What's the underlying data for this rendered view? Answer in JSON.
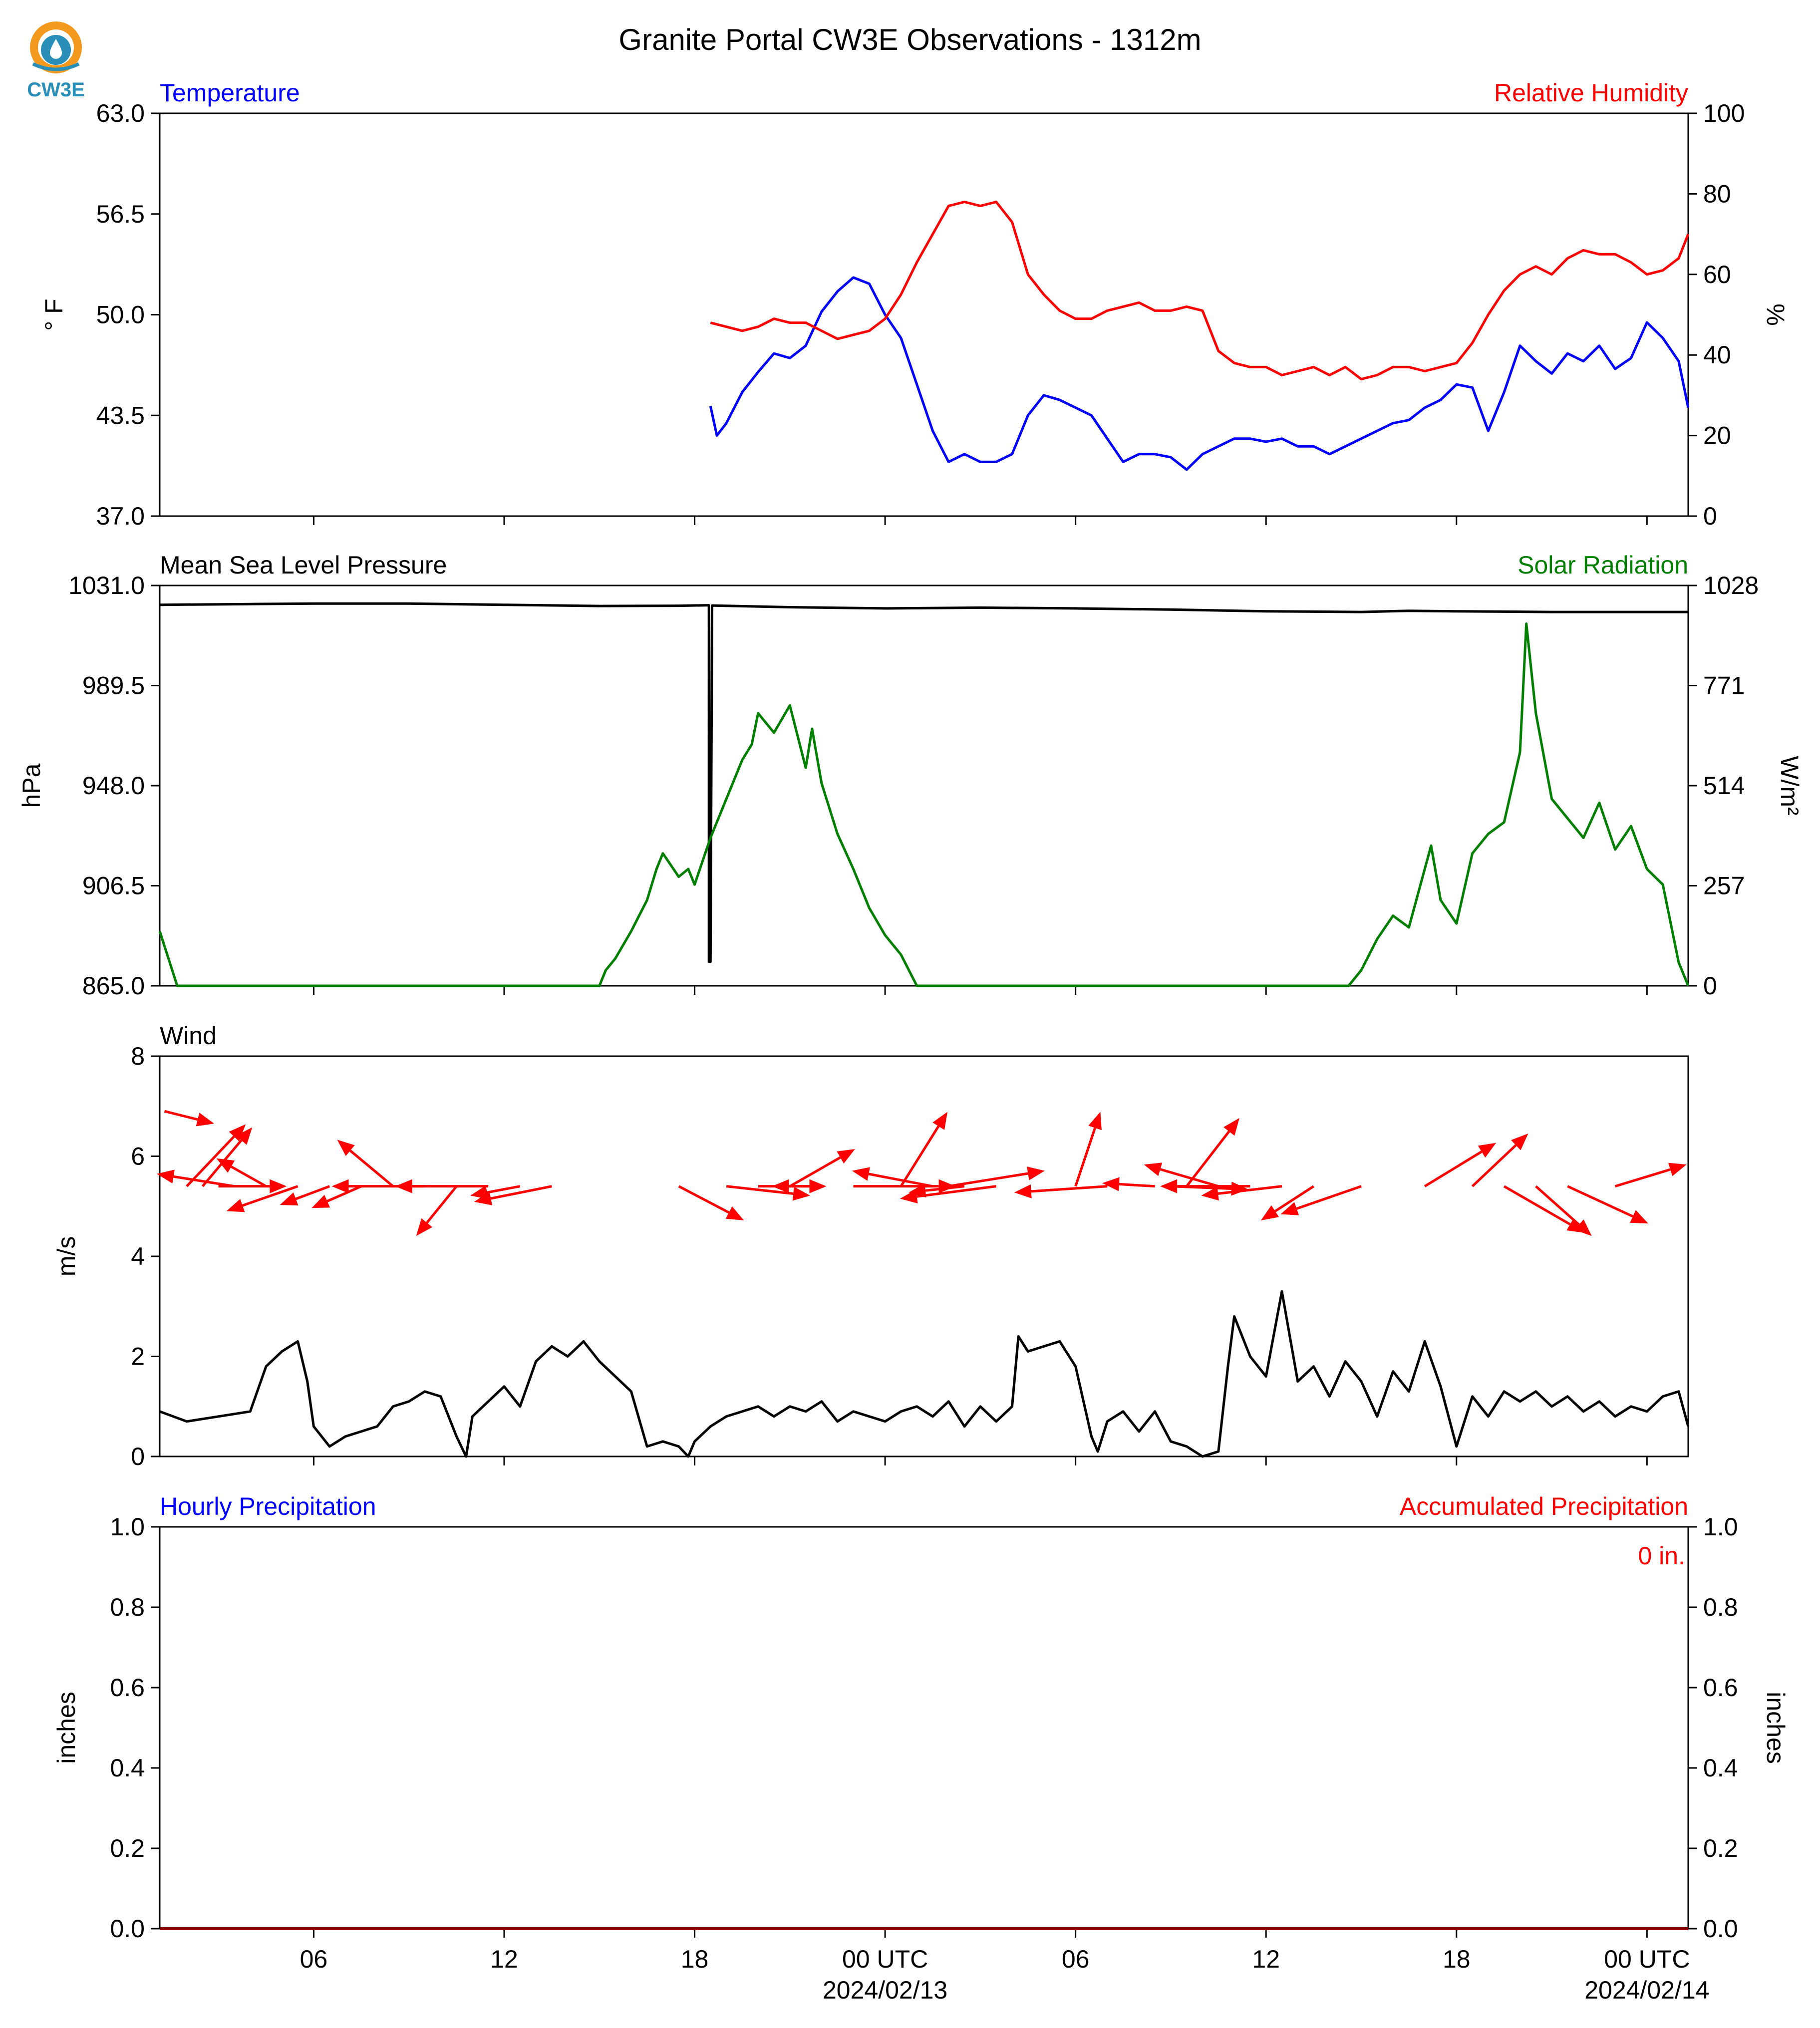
{
  "title": "Granite Portal CW3E Observations - 1312m",
  "logo": {
    "text": "CW3E",
    "colors": {
      "sun": "#f39a1e",
      "water": "#2a8fb8",
      "text": "#2a8fb8"
    }
  },
  "colors": {
    "blue": "#0000ff",
    "red": "#ff0000",
    "green": "#007f00",
    "black": "#000000",
    "axis": "#000000"
  },
  "x_axis": {
    "range_hours": [
      -22.85,
      25.3
    ],
    "ticks": [
      {
        "hour": -18,
        "label": "06"
      },
      {
        "hour": -12,
        "label": "12"
      },
      {
        "hour": -6,
        "label": "18"
      },
      {
        "hour": 0,
        "label": "00 UTC",
        "date": "2024/02/13"
      },
      {
        "hour": 6,
        "label": "06"
      },
      {
        "hour": 12,
        "label": "12"
      },
      {
        "hour": 18,
        "label": "18"
      },
      {
        "hour": 24,
        "label": "00 UTC",
        "date": "2024/02/14"
      }
    ]
  },
  "chart_data": [
    {
      "id": "temperature_humidity",
      "type": "line",
      "left_title": "Temperature",
      "right_title": "Relative Humidity",
      "left_ylabel": "° F",
      "right_ylabel": "%",
      "left_ylim": [
        37.0,
        63.0
      ],
      "right_ylim": [
        0,
        100
      ],
      "left_ticks": [
        "37.0",
        "43.5",
        "50.0",
        "56.5",
        "63.0"
      ],
      "right_ticks": [
        "0",
        "20",
        "40",
        "60",
        "80",
        "100"
      ],
      "series": [
        {
          "name": "Temperature",
          "axis": "left",
          "color": "#0000ff",
          "x": [
            -5.5,
            -5.3,
            -5,
            -4.5,
            -4,
            -3.5,
            -3,
            -2.5,
            -2,
            -1.5,
            -1,
            -0.5,
            0,
            0.5,
            1,
            1.5,
            2,
            2.5,
            3,
            3.5,
            4,
            4.5,
            5,
            5.5,
            6,
            6.5,
            7,
            7.5,
            8,
            8.5,
            9,
            9.5,
            10,
            10.5,
            11,
            11.5,
            12,
            12.5,
            13,
            13.5,
            14,
            14.5,
            15,
            15.5,
            16,
            16.5,
            17,
            17.5,
            18,
            18.5,
            19,
            19.5,
            20,
            20.5,
            21,
            21.5,
            22,
            22.5,
            23,
            23.5,
            24,
            24.5,
            25,
            25.3
          ],
          "y": [
            44.1,
            42.2,
            43.0,
            45.0,
            46.3,
            47.5,
            47.2,
            48.0,
            50.2,
            51.5,
            52.4,
            52.0,
            50.0,
            48.5,
            45.5,
            42.5,
            40.5,
            41.0,
            40.5,
            40.5,
            41.0,
            43.5,
            44.8,
            44.5,
            44.0,
            43.5,
            42.0,
            40.5,
            41.0,
            41.0,
            40.8,
            40.0,
            41.0,
            41.5,
            42.0,
            42.0,
            41.8,
            42.0,
            41.5,
            41.5,
            41.0,
            41.5,
            42.0,
            42.5,
            43.0,
            43.2,
            44.0,
            44.5,
            45.5,
            45.3,
            42.5,
            45.0,
            48.0,
            47.0,
            46.2,
            47.5,
            47.0,
            48.0,
            46.5,
            47.2,
            49.5,
            48.5,
            47.0,
            44.0
          ]
        },
        {
          "name": "Relative Humidity",
          "axis": "right",
          "color": "#ff0000",
          "x": [
            -5.5,
            -5,
            -4.5,
            -4,
            -3.5,
            -3,
            -2.5,
            -2,
            -1.5,
            -1,
            -0.5,
            0,
            0.5,
            1,
            1.5,
            2,
            2.5,
            3,
            3.5,
            4,
            4.5,
            5,
            5.5,
            6,
            6.5,
            7,
            7.5,
            8,
            8.5,
            9,
            9.5,
            10,
            10.5,
            11,
            11.5,
            12,
            12.5,
            13,
            13.5,
            14,
            14.5,
            15,
            15.5,
            16,
            16.5,
            17,
            17.5,
            18,
            18.5,
            19,
            19.5,
            20,
            20.5,
            21,
            21.5,
            22,
            22.5,
            23,
            23.5,
            24,
            24.5,
            25,
            25.3
          ],
          "y": [
            48,
            47,
            46,
            47,
            49,
            48,
            48,
            46,
            44,
            45,
            46,
            49,
            55,
            63,
            70,
            77,
            78,
            77,
            78,
            73,
            60,
            55,
            51,
            49,
            49,
            51,
            52,
            53,
            51,
            51,
            52,
            51,
            41,
            38,
            37,
            37,
            35,
            36,
            37,
            35,
            37,
            34,
            35,
            37,
            37,
            36,
            37,
            38,
            43,
            50,
            56,
            60,
            62,
            60,
            64,
            66,
            65,
            65,
            63,
            60,
            61,
            64,
            70
          ]
        }
      ]
    },
    {
      "id": "pressure_solar",
      "type": "line",
      "left_title": "Mean Sea Level Pressure",
      "right_title": "Solar Radiation",
      "left_ylabel": "hPa",
      "right_ylabel": "W/m²",
      "left_ylim": [
        865.0,
        1031.0
      ],
      "right_ylim": [
        0,
        1028
      ],
      "left_ticks": [
        "865.0",
        "906.5",
        "948.0",
        "989.5",
        "1031.0"
      ],
      "right_ticks": [
        "0",
        "257",
        "514",
        "771",
        "1028"
      ],
      "series": [
        {
          "name": "Mean Sea Level Pressure",
          "axis": "left",
          "color": "#000000",
          "x": [
            -22.85,
            -20,
            -18,
            -15,
            -12,
            -9,
            -6.5,
            -5.6,
            -5.55,
            -5.55,
            -5.5,
            -5.45,
            -3,
            0,
            3,
            6,
            9,
            12,
            15,
            16.5,
            18,
            21,
            25.3
          ],
          "y": [
            1023.0,
            1023.3,
            1023.5,
            1023.5,
            1023.0,
            1022.5,
            1022.6,
            1022.8,
            1022.8,
            875.0,
            875.0,
            1022.7,
            1022.0,
            1021.5,
            1021.8,
            1021.5,
            1021.0,
            1020.3,
            1020.0,
            1020.5,
            1020.3,
            1020.0,
            1020.0
          ]
        },
        {
          "name": "Solar Radiation",
          "axis": "right",
          "color": "#007f00",
          "x": [
            -22.85,
            -22.3,
            -18,
            -14,
            -9,
            -8.8,
            -8.5,
            -8,
            -7.5,
            -7.2,
            -7,
            -6.5,
            -6.2,
            -6,
            -5.5,
            -5,
            -4.5,
            -4.2,
            -4,
            -3.5,
            -3,
            -2.5,
            -2.3,
            -2,
            -1.5,
            -1,
            -0.5,
            0,
            0.5,
            1,
            1.5,
            3,
            6,
            9,
            12,
            14,
            14.6,
            15,
            15.5,
            16,
            16.5,
            17,
            17.2,
            17.5,
            18,
            18.5,
            19,
            19.5,
            20,
            20.2,
            20.5,
            21,
            21.5,
            22,
            22.5,
            23,
            23.5,
            24,
            24.5,
            25,
            25.3
          ],
          "y": [
            140,
            0,
            0,
            0,
            0,
            40,
            70,
            140,
            220,
            300,
            340,
            280,
            300,
            260,
            380,
            480,
            580,
            620,
            700,
            650,
            720,
            560,
            660,
            520,
            390,
            300,
            200,
            130,
            80,
            0,
            0,
            0,
            0,
            0,
            0,
            0,
            0,
            40,
            120,
            180,
            150,
            300,
            360,
            220,
            160,
            340,
            390,
            420,
            600,
            930,
            700,
            480,
            430,
            380,
            470,
            350,
            410,
            300,
            260,
            60,
            0
          ]
        }
      ]
    },
    {
      "id": "wind",
      "type": "line",
      "left_title": "Wind",
      "left_ylabel": "m/s",
      "left_ylim": [
        0,
        8
      ],
      "left_ticks": [
        "0",
        "2",
        "4",
        "6",
        "8"
      ],
      "series": [
        {
          "name": "Wind",
          "axis": "left",
          "color": "#000000",
          "x": [
            -22.85,
            -22,
            -21,
            -20,
            -19.5,
            -19,
            -18.5,
            -18.2,
            -18,
            -17.5,
            -17,
            -16,
            -15.5,
            -15,
            -14.5,
            -14,
            -13.5,
            -13.2,
            -13,
            -12.5,
            -12,
            -11.5,
            -11,
            -10.5,
            -10,
            -9.5,
            -9,
            -8.5,
            -8,
            -7.5,
            -7,
            -6.5,
            -6.2,
            -6,
            -5.5,
            -5,
            -4.5,
            -4,
            -3.5,
            -3,
            -2.5,
            -2,
            -1.5,
            -1,
            -0.5,
            0,
            0.5,
            1,
            1.5,
            2,
            2.5,
            3,
            3.5,
            4,
            4.2,
            4.5,
            5,
            5.5,
            6,
            6.5,
            6.7,
            7,
            7.5,
            8,
            8.5,
            9,
            9.5,
            10,
            10.5,
            10.8,
            11,
            11.5,
            12,
            12.5,
            13,
            13.5,
            14,
            14.5,
            15,
            15.5,
            16,
            16.5,
            17,
            17.5,
            18,
            18.5,
            19,
            19.5,
            20,
            20.5,
            21,
            21.5,
            22,
            22.5,
            23,
            23.5,
            24,
            24.5,
            25,
            25.3
          ],
          "y": [
            0.9,
            0.7,
            0.8,
            0.9,
            1.8,
            2.1,
            2.3,
            1.5,
            0.6,
            0.2,
            0.4,
            0.6,
            1.0,
            1.1,
            1.3,
            1.2,
            0.4,
            0,
            0.8,
            1.1,
            1.4,
            1.0,
            1.9,
            2.2,
            2.0,
            2.3,
            1.9,
            1.6,
            1.3,
            0.2,
            0.3,
            0.2,
            0,
            0.3,
            0.6,
            0.8,
            0.9,
            1.0,
            0.8,
            1.0,
            0.9,
            1.1,
            0.7,
            0.9,
            0.8,
            0.7,
            0.9,
            1.0,
            0.8,
            1.1,
            0.6,
            1.0,
            0.7,
            1.0,
            2.4,
            2.1,
            2.2,
            2.3,
            1.8,
            0.4,
            0.1,
            0.7,
            0.9,
            0.5,
            0.9,
            0.3,
            0.2,
            0,
            0.1,
            1.8,
            2.8,
            2.0,
            1.6,
            3.3,
            1.5,
            1.8,
            1.2,
            1.9,
            1.5,
            0.8,
            1.7,
            1.3,
            2.3,
            1.4,
            0.2,
            1.2,
            0.8,
            1.3,
            1.1,
            1.3,
            1.0,
            1.2,
            0.9,
            1.1,
            0.8,
            1.0,
            0.9,
            1.2,
            1.3,
            0.6
          ]
        }
      ],
      "wind_arrows": {
        "color": "#ff0000",
        "items": [
          {
            "hour": -22.7,
            "y": 6.9,
            "dx": 1.6,
            "dy": -0.4
          },
          {
            "hour": -22.0,
            "y": 5.4,
            "dx": 1.9,
            "dy": 2.0
          },
          {
            "hour": -21.5,
            "y": 5.4,
            "dx": 1.6,
            "dy": 1.9
          },
          {
            "hour": -21.0,
            "y": 5.4,
            "dx": 2.2,
            "dy": 0.0
          },
          {
            "hour": -20.5,
            "y": 5.4,
            "dx": -2.5,
            "dy": 0.4
          },
          {
            "hour": -19.5,
            "y": 5.4,
            "dx": -1.6,
            "dy": 0.9
          },
          {
            "hour": -18.5,
            "y": 5.4,
            "dx": -2.3,
            "dy": -0.8
          },
          {
            "hour": -17.5,
            "y": 5.4,
            "dx": -1.6,
            "dy": -0.6
          },
          {
            "hour": -16.5,
            "y": 5.4,
            "dx": -1.6,
            "dy": -0.7
          },
          {
            "hour": -15.5,
            "y": 5.4,
            "dx": -1.8,
            "dy": 1.5
          },
          {
            "hour": -14.5,
            "y": 5.4,
            "dx": -3.0,
            "dy": 0.0
          },
          {
            "hour": -13.5,
            "y": 5.4,
            "dx": -1.3,
            "dy": -1.6
          },
          {
            "hour": -12.5,
            "y": 5.4,
            "dx": -3.0,
            "dy": 0.0
          },
          {
            "hour": -11.5,
            "y": 5.4,
            "dx": -1.6,
            "dy": -0.3
          },
          {
            "hour": -10.5,
            "y": 5.4,
            "dx": -2.5,
            "dy": -0.5
          },
          {
            "hour": -6.5,
            "y": 5.4,
            "dx": 2.1,
            "dy": -1.1
          },
          {
            "hour": -5.0,
            "y": 5.4,
            "dx": 2.7,
            "dy": -0.3
          },
          {
            "hour": -4.0,
            "y": 5.4,
            "dx": 2.2,
            "dy": 0.0
          },
          {
            "hour": -3.0,
            "y": 5.4,
            "dx": 2.1,
            "dy": 1.2
          },
          {
            "hour": -2.0,
            "y": 5.4,
            "dx": -1.6,
            "dy": 0.0
          },
          {
            "hour": -1.0,
            "y": 5.4,
            "dx": 3.3,
            "dy": 0.0
          },
          {
            "hour": 0.5,
            "y": 5.4,
            "dx": 1.5,
            "dy": 2.4
          },
          {
            "hour": 1.5,
            "y": 5.4,
            "dx": -2.6,
            "dy": 0.5
          },
          {
            "hour": 2.0,
            "y": 5.4,
            "dx": 3.1,
            "dy": 0.5
          },
          {
            "hour": 2.5,
            "y": 5.4,
            "dx": -1.8,
            "dy": -0.2
          },
          {
            "hour": 3.5,
            "y": 5.4,
            "dx": -3.1,
            "dy": -0.4
          },
          {
            "hour": 6.0,
            "y": 5.4,
            "dx": 0.8,
            "dy": 2.4
          },
          {
            "hour": 7.0,
            "y": 5.4,
            "dx": -3.0,
            "dy": -0.2
          },
          {
            "hour": 8.5,
            "y": 5.4,
            "dx": -1.7,
            "dy": 0.1
          },
          {
            "hour": 9.0,
            "y": 5.4,
            "dx": 2.5,
            "dy": -0.1
          },
          {
            "hour": 9.5,
            "y": 5.4,
            "dx": 1.7,
            "dy": 2.2
          },
          {
            "hour": 10.5,
            "y": 5.4,
            "dx": -2.4,
            "dy": 0.7
          },
          {
            "hour": 11.5,
            "y": 5.4,
            "dx": -2.9,
            "dy": 0.0
          },
          {
            "hour": 12.5,
            "y": 5.4,
            "dx": -2.6,
            "dy": -0.3
          },
          {
            "hour": 13.5,
            "y": 5.4,
            "dx": -1.7,
            "dy": -1.1
          },
          {
            "hour": 15.0,
            "y": 5.4,
            "dx": -2.6,
            "dy": -0.9
          },
          {
            "hour": 17.0,
            "y": 5.4,
            "dx": 2.3,
            "dy": 1.4
          },
          {
            "hour": 18.5,
            "y": 5.4,
            "dx": 1.8,
            "dy": 1.7
          },
          {
            "hour": 19.5,
            "y": 5.4,
            "dx": 2.6,
            "dy": -1.5
          },
          {
            "hour": 20.5,
            "y": 5.4,
            "dx": 1.8,
            "dy": -1.6
          },
          {
            "hour": 21.5,
            "y": 5.4,
            "dx": 2.6,
            "dy": -1.2
          },
          {
            "hour": 23.0,
            "y": 5.4,
            "dx": 2.3,
            "dy": 0.7
          }
        ]
      }
    },
    {
      "id": "precipitation",
      "type": "bar",
      "left_title": "Hourly Precipitation",
      "right_title": "Accumulated Precipitation",
      "left_ylabel": "inches",
      "right_ylabel": "inches",
      "left_ylim": [
        0.0,
        1.0
      ],
      "right_ylim": [
        0.0,
        1.0
      ],
      "left_ticks": [
        "0.0",
        "0.2",
        "0.4",
        "0.6",
        "0.8",
        "1.0"
      ],
      "right_ticks": [
        "0.0",
        "0.2",
        "0.4",
        "0.6",
        "0.8",
        "1.0"
      ],
      "accumulated_label": "0 in.",
      "series": [
        {
          "name": "Hourly Precipitation",
          "axis": "left",
          "color": "#0000ff",
          "x": [],
          "y": []
        },
        {
          "name": "Accumulated Precipitation",
          "axis": "right",
          "color": "#ff0000",
          "x": [
            -22.85,
            25.3
          ],
          "y": [
            0,
            0
          ]
        }
      ]
    }
  ]
}
